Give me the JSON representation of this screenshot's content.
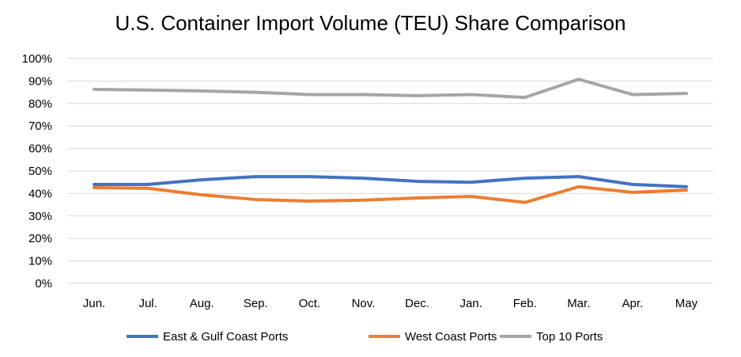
{
  "chart_data": {
    "type": "line",
    "title": "U.S. Container Import Volume (TEU) Share Comparison",
    "xlabel": "",
    "ylabel": "",
    "categories": [
      "Jun.",
      "Jul.",
      "Aug.",
      "Sep.",
      "Oct.",
      "Nov.",
      "Dec.",
      "Jan.",
      "Feb.",
      "Mar.",
      "Apr.",
      "May"
    ],
    "ylim": [
      0,
      100
    ],
    "yticks": [
      "0%",
      "10%",
      "20%",
      "30%",
      "40%",
      "50%",
      "60%",
      "70%",
      "80%",
      "90%",
      "100%"
    ],
    "grid": true,
    "legend": "bottom",
    "series": [
      {
        "name": "East & Gulf Coast Ports",
        "color": "#4472C4",
        "values": [
          44,
          44,
          46.1,
          47.5,
          47.5,
          46.8,
          45.4,
          45,
          46.8,
          47.5,
          44,
          43
        ]
      },
      {
        "name": "West Coast Ports",
        "color": "#ED7D31",
        "values": [
          42.6,
          42.3,
          39.4,
          37.3,
          36.6,
          37,
          38,
          38.7,
          36,
          43,
          40.5,
          41.5
        ]
      },
      {
        "name": "Top 10 Ports",
        "color": "#A5A5A5",
        "values": [
          86.3,
          86,
          85.6,
          85,
          84,
          84,
          83.5,
          84,
          82.7,
          90.8,
          84,
          84.5
        ]
      }
    ]
  }
}
